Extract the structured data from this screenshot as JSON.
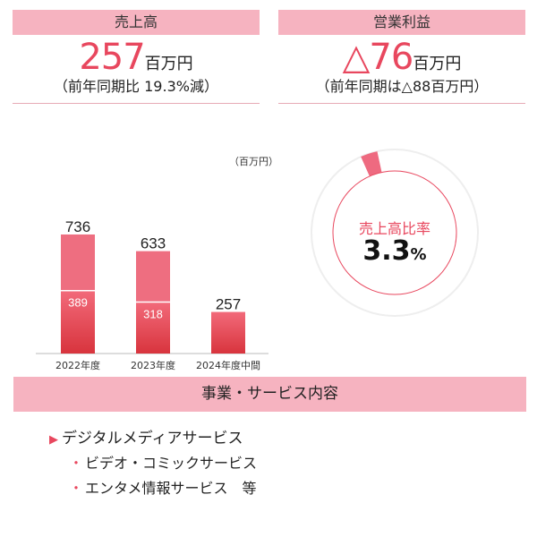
{
  "kpis": {
    "sales": {
      "label": "売上高",
      "value": "257",
      "unit": "百万円",
      "note": "（前年同期比 19.3%減）"
    },
    "operating_profit": {
      "label": "営業利益",
      "value": "△76",
      "unit": "百万円",
      "note": "（前年同期は△88百万円）"
    }
  },
  "chart_unit": "（百万円）",
  "chart_data": [
    {
      "type": "bar",
      "title": "",
      "categories": [
        "2022年度",
        "2023年度",
        "2024年度中間"
      ],
      "totals": [
        736,
        633,
        257
      ],
      "series": [
        {
          "values": [
            389,
            318,
            257
          ]
        },
        {
          "values": [
            347,
            315,
            0
          ]
        }
      ],
      "segment_labels": [
        "389",
        "318",
        ""
      ],
      "total_labels": [
        "736",
        "633",
        "257"
      ],
      "ylim": [
        0,
        736
      ],
      "grid": false,
      "colors": {
        "lower_top": "#f26a7a",
        "lower_bottom": "#d8343d",
        "upper": "#ee6e80"
      }
    },
    {
      "type": "pie",
      "title": "売上高比率",
      "values": [
        3.3,
        96.7
      ],
      "value_label": "3.3",
      "unit": "%",
      "colors": {
        "slice": "#ee6a80",
        "rest": "#eeeeee",
        "inner": "#e8475e"
      }
    }
  ],
  "business": {
    "title": "事業・サービス内容",
    "main_item": "デジタルメディアサービス",
    "sub_items": [
      "ビデオ・コミックサービス",
      "エンタメ情報サービス　等"
    ]
  }
}
